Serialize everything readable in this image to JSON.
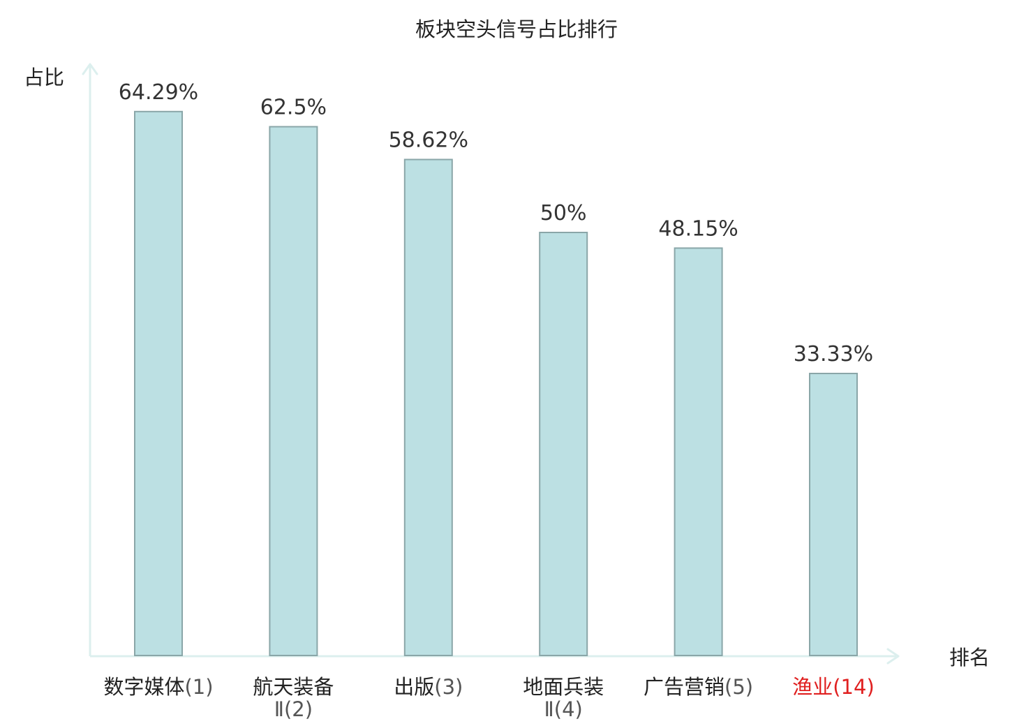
{
  "chart_data": {
    "type": "bar",
    "title": "板块空头信号占比排行",
    "ylabel": "占比",
    "xlabel": "排名",
    "ylim": [
      0,
      70
    ],
    "grid": false,
    "legend": "none",
    "categories": [
      {
        "lines": [
          "数字媒体"
        ],
        "rank": "(1)",
        "highlight": false
      },
      {
        "lines": [
          "航天装备"
        ],
        "rank": "Ⅱ(2)",
        "highlight": false
      },
      {
        "lines": [
          "出版"
        ],
        "rank": "(3)",
        "highlight": false
      },
      {
        "lines": [
          "地面兵装"
        ],
        "rank": "Ⅱ(4)",
        "highlight": false
      },
      {
        "lines": [
          "广告营销"
        ],
        "rank": "(5)",
        "highlight": false
      },
      {
        "lines": [
          "渔业"
        ],
        "rank": "(14)",
        "highlight": true
      }
    ],
    "values": [
      64.29,
      62.5,
      58.62,
      50,
      48.15,
      33.33
    ],
    "value_labels": [
      "64.29%",
      "62.5%",
      "58.62%",
      "50%",
      "48.15%",
      "33.33%"
    ]
  },
  "colors": {
    "bar_fill": "#bce0e3",
    "bar_stroke": "#8aa6a8",
    "axis": "#dcefee",
    "highlight_text": "#e02020",
    "text": "#222222",
    "rank_text": "#555555"
  }
}
